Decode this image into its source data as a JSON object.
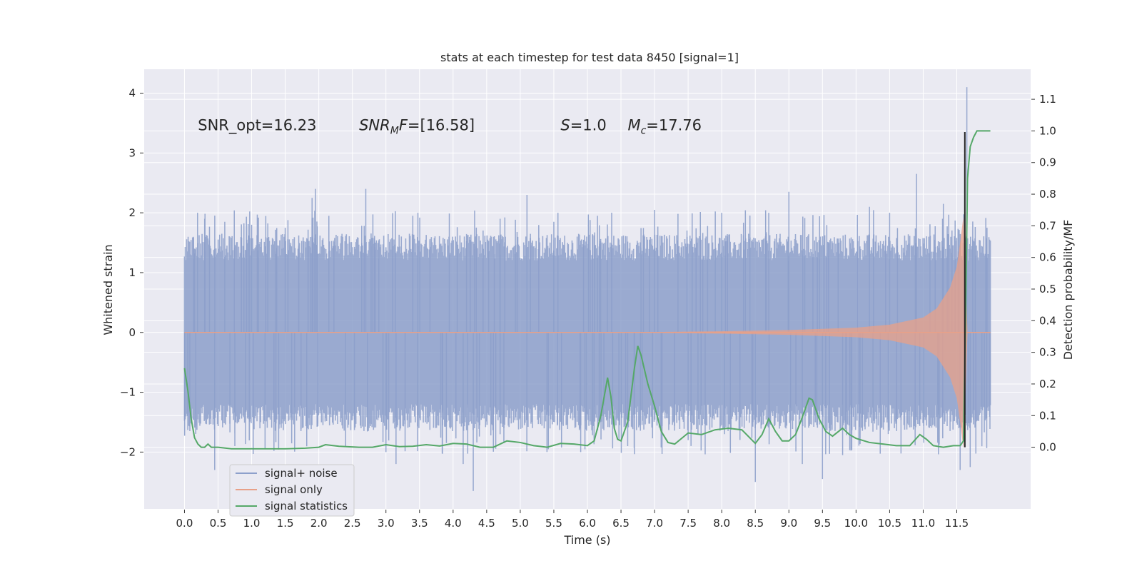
{
  "chart_data": {
    "type": "line",
    "title": "stats at each timestep for test data 8450 [signal=1]",
    "xlabel": "Time (s)",
    "ylabel": "Whitened strain",
    "y2label": "Detection probability/MF",
    "xlim": [
      -0.6,
      12.6
    ],
    "ylim": [
      -2.95,
      4.4
    ],
    "y2lim": [
      -0.195,
      1.195
    ],
    "x_ticks": [
      0.0,
      0.5,
      1.0,
      1.5,
      2.0,
      2.5,
      3.0,
      3.5,
      4.0,
      4.5,
      5.0,
      5.5,
      6.0,
      6.5,
      7.0,
      7.5,
      8.0,
      8.5,
      9.0,
      9.5,
      10.0,
      10.5,
      11.0,
      11.5
    ],
    "x_tick_labels": [
      "0.0",
      "0.5",
      "1.0",
      "1.5",
      "2.0",
      "2.5",
      "3.0",
      "3.5",
      "4.0",
      "4.5",
      "5.0",
      "5.5",
      "6.0",
      "6.5",
      "7.0",
      "7.5",
      "8.0",
      "8.5",
      "9.0",
      "9.5",
      "10.0",
      "10.5",
      "11.0",
      "11.5"
    ],
    "y_ticks": [
      -2,
      -1,
      0,
      1,
      2,
      3,
      4
    ],
    "y_tick_labels": [
      "−2",
      "−1",
      "0",
      "1",
      "2",
      "3",
      "4"
    ],
    "y2_ticks": [
      0.0,
      0.1,
      0.2,
      0.3,
      0.4,
      0.5,
      0.6,
      0.7,
      0.8,
      0.9,
      1.0,
      1.1
    ],
    "y2_tick_labels": [
      "0.0",
      "0.1",
      "0.2",
      "0.3",
      "0.4",
      "0.5",
      "0.6",
      "0.7",
      "0.8",
      "0.9",
      "1.0",
      "1.1"
    ],
    "grid": true,
    "legend_position": "lower-left",
    "annotations": [
      {
        "text": "SNR_opt=16.23",
        "x": 0.2,
        "y": 3.38
      },
      {
        "text": "SNR_MF=[16.58]",
        "x": 2.6,
        "y": 3.38
      },
      {
        "text": "S=1.0",
        "x": 5.6,
        "y": 3.38
      },
      {
        "text": "M_c=17.76",
        "x": 6.6,
        "y": 3.38
      }
    ],
    "series": [
      {
        "name": "signal+ noise",
        "color": "#8da0cb",
        "axis": "left",
        "x_range": [
          0.0,
          12.0
        ],
        "typical_amplitude": 1.2,
        "peaks": [
          {
            "x": 0.08,
            "y": -1.65
          },
          {
            "x": 0.15,
            "y": 1.4
          },
          {
            "x": 0.3,
            "y": 1.9
          },
          {
            "x": 0.45,
            "y": -2.3
          },
          {
            "x": 0.6,
            "y": 1.85
          },
          {
            "x": 0.75,
            "y": -1.9
          },
          {
            "x": 1.0,
            "y": 1.8
          },
          {
            "x": 1.2,
            "y": -1.95
          },
          {
            "x": 1.5,
            "y": 1.75
          },
          {
            "x": 1.95,
            "y": 2.4
          },
          {
            "x": 1.9,
            "y": 2.25
          },
          {
            "x": 2.15,
            "y": 1.95
          },
          {
            "x": 2.4,
            "y": -1.9
          },
          {
            "x": 2.7,
            "y": 2.4
          },
          {
            "x": 3.0,
            "y": -2.0
          },
          {
            "x": 3.15,
            "y": -2.2
          },
          {
            "x": 3.4,
            "y": 1.95
          },
          {
            "x": 3.9,
            "y": -1.85
          },
          {
            "x": 4.3,
            "y": -2.65
          },
          {
            "x": 4.15,
            "y": -2.2
          },
          {
            "x": 4.7,
            "y": 1.9
          },
          {
            "x": 5.1,
            "y": 2.3
          },
          {
            "x": 5.5,
            "y": 1.85
          },
          {
            "x": 5.9,
            "y": -2.0
          },
          {
            "x": 6.15,
            "y": 1.95
          },
          {
            "x": 6.6,
            "y": -1.9
          },
          {
            "x": 7.0,
            "y": 2.05
          },
          {
            "x": 7.5,
            "y": -1.8
          },
          {
            "x": 8.0,
            "y": 2.0
          },
          {
            "x": 8.5,
            "y": -2.5
          },
          {
            "x": 8.7,
            "y": 2.0
          },
          {
            "x": 9.0,
            "y": 2.35
          },
          {
            "x": 9.2,
            "y": -2.2
          },
          {
            "x": 9.5,
            "y": -2.45
          },
          {
            "x": 9.8,
            "y": -2.05
          },
          {
            "x": 10.2,
            "y": 2.1
          },
          {
            "x": 10.5,
            "y": 2.0
          },
          {
            "x": 10.9,
            "y": 2.65
          },
          {
            "x": 11.3,
            "y": 2.15
          },
          {
            "x": 11.55,
            "y": -2.3
          },
          {
            "x": 11.65,
            "y": 4.1
          },
          {
            "x": 11.7,
            "y": -2.25
          },
          {
            "x": 11.95,
            "y": 1.75
          }
        ]
      },
      {
        "name": "signal only",
        "color": "#e8a088",
        "axis": "left",
        "envelope": [
          {
            "x": 0.0,
            "amp": 0.0
          },
          {
            "x": 7.0,
            "amp": 0.008
          },
          {
            "x": 8.0,
            "amp": 0.02
          },
          {
            "x": 9.0,
            "amp": 0.04
          },
          {
            "x": 10.0,
            "amp": 0.08
          },
          {
            "x": 10.5,
            "amp": 0.13
          },
          {
            "x": 11.0,
            "amp": 0.25
          },
          {
            "x": 11.2,
            "amp": 0.4
          },
          {
            "x": 11.4,
            "amp": 0.75
          },
          {
            "x": 11.5,
            "amp": 1.1
          },
          {
            "x": 11.55,
            "amp": 1.5
          },
          {
            "x": 11.6,
            "amp": 1.95
          },
          {
            "x": 11.63,
            "amp": 1.0
          },
          {
            "x": 11.66,
            "amp": 0.0
          },
          {
            "x": 12.0,
            "amp": 0.0
          }
        ]
      },
      {
        "name": "signal statistics",
        "color": "#55a868",
        "axis": "right",
        "x": [
          0.0,
          0.05,
          0.1,
          0.15,
          0.2,
          0.25,
          0.3,
          0.35,
          0.4,
          0.5,
          0.7,
          0.9,
          1.2,
          1.5,
          1.8,
          2.0,
          2.1,
          2.3,
          2.6,
          2.8,
          3.0,
          3.2,
          3.4,
          3.6,
          3.8,
          4.0,
          4.2,
          4.4,
          4.6,
          4.8,
          5.0,
          5.2,
          5.4,
          5.6,
          5.8,
          6.0,
          6.1,
          6.2,
          6.3,
          6.35,
          6.4,
          6.45,
          6.5,
          6.6,
          6.7,
          6.75,
          6.8,
          6.9,
          7.0,
          7.1,
          7.2,
          7.3,
          7.5,
          7.7,
          7.9,
          8.1,
          8.3,
          8.5,
          8.6,
          8.7,
          8.8,
          8.9,
          9.0,
          9.1,
          9.2,
          9.3,
          9.35,
          9.45,
          9.55,
          9.65,
          9.8,
          9.9,
          10.0,
          10.2,
          10.4,
          10.6,
          10.8,
          10.95,
          11.05,
          11.15,
          11.3,
          11.45,
          11.55,
          11.6,
          11.63,
          11.66,
          11.7,
          11.75,
          11.8,
          11.9,
          12.0
        ],
        "values": [
          0.25,
          0.18,
          0.09,
          0.03,
          0.01,
          0.0,
          0.0,
          0.01,
          0.0,
          0.0,
          -0.005,
          -0.005,
          -0.005,
          -0.005,
          -0.003,
          0.0,
          0.008,
          0.003,
          0.0,
          0.0,
          0.008,
          0.002,
          0.003,
          0.008,
          0.004,
          0.012,
          0.01,
          0.0,
          0.0,
          0.02,
          0.015,
          0.005,
          0.0,
          0.012,
          0.01,
          0.005,
          0.02,
          0.1,
          0.22,
          0.16,
          0.06,
          0.025,
          0.02,
          0.08,
          0.25,
          0.32,
          0.29,
          0.2,
          0.13,
          0.05,
          0.015,
          0.01,
          0.045,
          0.04,
          0.055,
          0.06,
          0.055,
          0.012,
          0.04,
          0.09,
          0.05,
          0.02,
          0.02,
          0.04,
          0.095,
          0.155,
          0.15,
          0.09,
          0.05,
          0.035,
          0.06,
          0.04,
          0.028,
          0.015,
          0.01,
          0.005,
          0.005,
          0.04,
          0.025,
          0.005,
          0.0,
          0.005,
          0.005,
          0.02,
          0.4,
          0.85,
          0.95,
          0.98,
          1.0,
          1.0,
          1.0
        ]
      }
    ]
  }
}
